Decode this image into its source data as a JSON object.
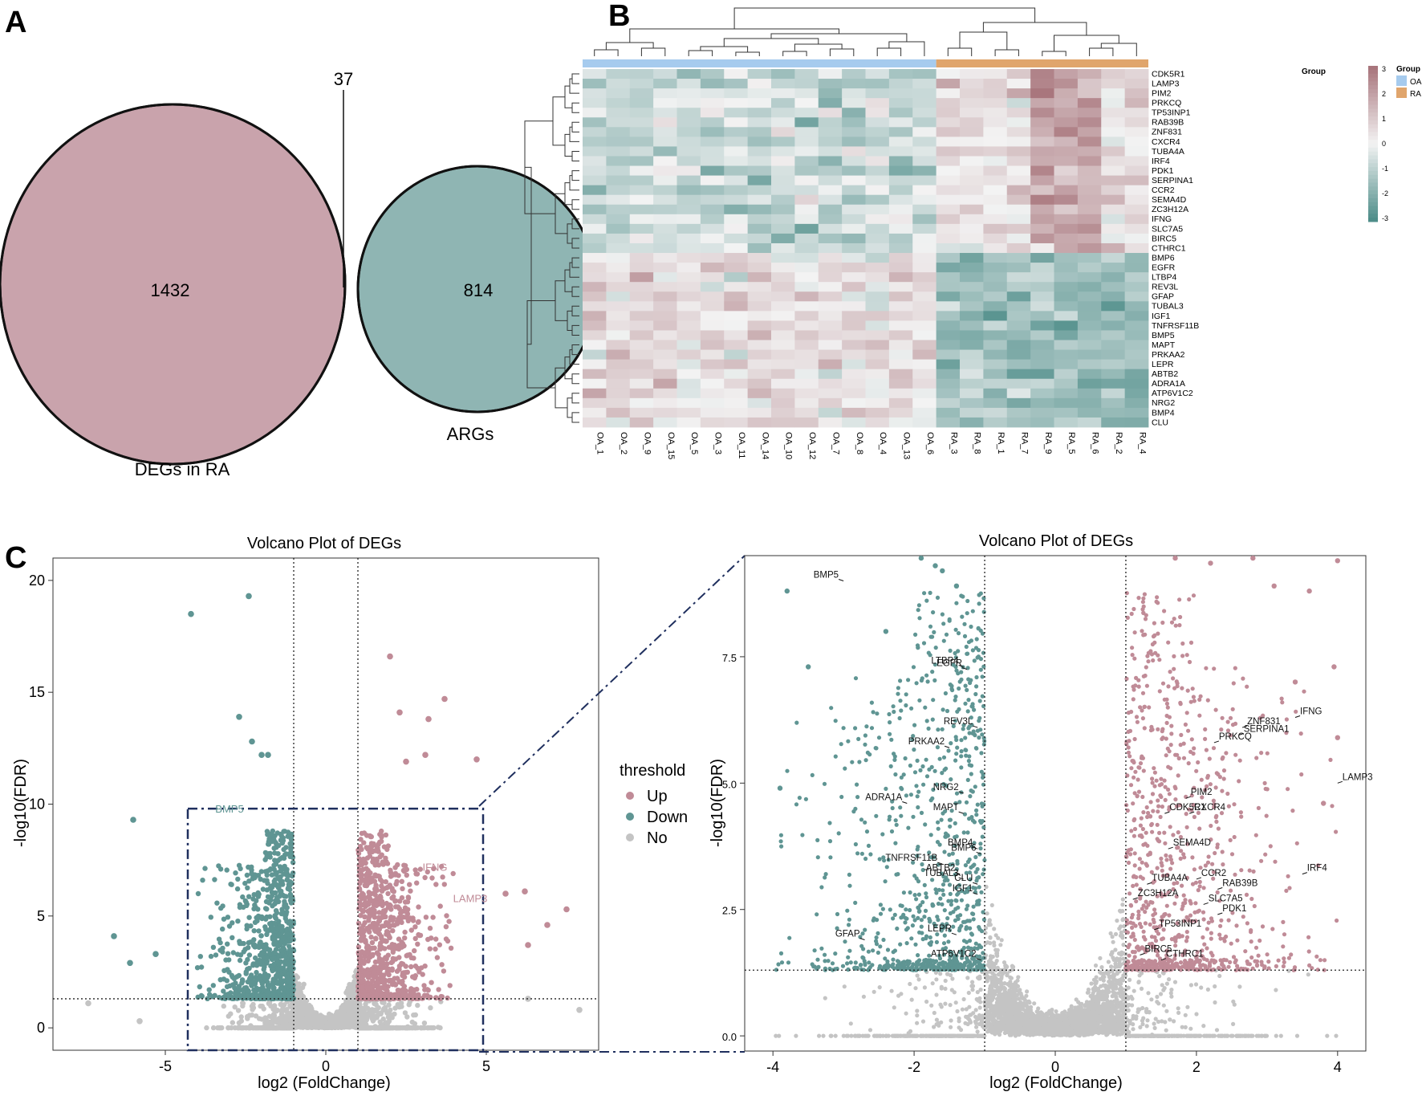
{
  "panels": {
    "a": "A",
    "b": "B",
    "c": "C"
  },
  "venn": {
    "left_label": "DEGs in RA",
    "right_label": "ARGs",
    "left_only": "1432",
    "right_only": "814",
    "overlap": "37",
    "colors": {
      "left": "#c9a3ac",
      "right": "#8fb5b3",
      "overlap": "#7e9aa0"
    }
  },
  "heatmap": {
    "columns": [
      "OA_1",
      "OA_2",
      "OA_9",
      "OA_15",
      "OA_5",
      "OA_3",
      "OA_11",
      "OA_14",
      "OA_10",
      "OA_12",
      "OA_7",
      "OA_8",
      "OA_4",
      "OA_13",
      "OA_6",
      "RA_3",
      "RA_8",
      "RA_1",
      "RA_7",
      "RA_9",
      "RA_5",
      "RA_6",
      "RA_2",
      "RA_4"
    ],
    "rows": [
      "CDK5R1",
      "LAMP3",
      "PIM2",
      "PRKCQ",
      "TP53INP1",
      "RAB39B",
      "ZNF831",
      "CXCR4",
      "TUBA4A",
      "IRF4",
      "PDK1",
      "SERPINA1",
      "CCR2",
      "SEMA4D",
      "ZC3H12A",
      "IFNG",
      "SLC7A5",
      "BIRC5",
      "CTHRC1",
      "BMP6",
      "EGFR",
      "LTBP4",
      "REV3L",
      "GFAP",
      "TUBAL3",
      "IGF1",
      "TNFRSF11B",
      "BMP5",
      "MAPT",
      "PRKAA2",
      "LEPR",
      "ABTB2",
      "ADRA1A",
      "ATP6V1C2",
      "NRG2",
      "BMP4",
      "CLU"
    ],
    "group_title": "Group",
    "groups": [
      {
        "name": "OA",
        "color": "#a6cbee"
      },
      {
        "name": "RA",
        "color": "#e0a56c"
      }
    ],
    "colorbar_ticks": [
      "3",
      "2",
      "1",
      "0",
      "-1",
      "-2",
      "-3"
    ],
    "colors": {
      "high": "#a8757c",
      "mid": "#f3f3f3",
      "low": "#4e8d89"
    }
  },
  "chart_data": [
    {
      "type": "scatter",
      "title": "Volcano Plot of DEGs",
      "xlabel": "log2 (FoldChange)",
      "ylabel": "-log10(FDR)",
      "xlim": [
        -8.5,
        8.5
      ],
      "ylim": [
        -1,
        21
      ],
      "x_ticks": [
        "-5",
        "0",
        "5"
      ],
      "y_ticks": [
        "0",
        "5",
        "10",
        "15",
        "20"
      ],
      "thresholds": {
        "x": [
          -1,
          1
        ],
        "y": 1.3
      },
      "zoom_box": {
        "x": [
          -4.3,
          4.9
        ],
        "y": [
          -1,
          9.8
        ]
      },
      "series": [
        {
          "name": "Up",
          "color": "#c08b97"
        },
        {
          "name": "Down",
          "color": "#5f9593"
        },
        {
          "name": "No",
          "color": "#c4c4c4"
        }
      ],
      "outliers": [
        {
          "x": -2.4,
          "y": 19.3,
          "g": "Down"
        },
        {
          "x": -4.2,
          "y": 18.5,
          "g": "Down"
        },
        {
          "x": -2.7,
          "y": 13.9,
          "g": "Down"
        },
        {
          "x": -2.3,
          "y": 12.8,
          "g": "Down"
        },
        {
          "x": -2.0,
          "y": 12.2,
          "g": "Down"
        },
        {
          "x": -1.8,
          "y": 12.2,
          "g": "Down"
        },
        {
          "x": -6.0,
          "y": 9.3,
          "g": "Down"
        },
        {
          "x": -6.6,
          "y": 4.1,
          "g": "Down"
        },
        {
          "x": -6.1,
          "y": 2.9,
          "g": "Down"
        },
        {
          "x": -5.3,
          "y": 3.3,
          "g": "Down"
        },
        {
          "x": 2.0,
          "y": 16.6,
          "g": "Up"
        },
        {
          "x": 3.7,
          "y": 14.7,
          "g": "Up"
        },
        {
          "x": 2.3,
          "y": 14.1,
          "g": "Up"
        },
        {
          "x": 3.2,
          "y": 13.8,
          "g": "Up"
        },
        {
          "x": 4.7,
          "y": 12.0,
          "g": "Up"
        },
        {
          "x": 3.1,
          "y": 12.2,
          "g": "Up"
        },
        {
          "x": 2.5,
          "y": 11.9,
          "g": "Up"
        },
        {
          "x": 7.5,
          "y": 5.3,
          "g": "Up"
        },
        {
          "x": 6.2,
          "y": 6.1,
          "g": "Up"
        },
        {
          "x": 5.6,
          "y": 6.0,
          "g": "Up"
        },
        {
          "x": 6.9,
          "y": 4.6,
          "g": "Up"
        },
        {
          "x": 6.3,
          "y": 3.7,
          "g": "Up"
        },
        {
          "x": -7.4,
          "y": 1.1,
          "g": "No"
        },
        {
          "x": 7.9,
          "y": 0.8,
          "g": "No"
        },
        {
          "x": -5.8,
          "y": 0.3,
          "g": "No"
        },
        {
          "x": 6.3,
          "y": 1.3,
          "g": "No"
        }
      ],
      "annotations": [
        {
          "label": "BMP5",
          "x": -3.0,
          "y": 9.4,
          "g": "Down"
        },
        {
          "label": "IFNG",
          "x": 3.4,
          "y": 6.8,
          "g": "Up"
        },
        {
          "label": "LAMP3",
          "x": 4.5,
          "y": 5.4,
          "g": "Up"
        }
      ]
    },
    {
      "type": "scatter",
      "title": "Volcano Plot of DEGs",
      "xlabel": "log2 (FoldChange)",
      "ylabel": "-log10(FDR)",
      "xlim": [
        -4.4,
        4.4
      ],
      "ylim": [
        -0.3,
        9.5
      ],
      "x_ticks": [
        "-4",
        "-2",
        "0",
        "2",
        "4"
      ],
      "y_ticks": [
        "0.0",
        "2.5",
        "5.0",
        "7.5"
      ],
      "thresholds": {
        "x": [
          -1,
          1
        ],
        "y": 1.3
      },
      "outliers": [
        {
          "x": -1.9,
          "y": 9.45,
          "g": "Down"
        },
        {
          "x": -1.7,
          "y": 9.3,
          "g": "Down"
        },
        {
          "x": -1.6,
          "y": 9.2,
          "g": "Down"
        },
        {
          "x": -1.4,
          "y": 8.9,
          "g": "Down"
        },
        {
          "x": -3.8,
          "y": 8.8,
          "g": "Down"
        },
        {
          "x": -2.4,
          "y": 8.0,
          "g": "Down"
        },
        {
          "x": -3.5,
          "y": 7.3,
          "g": "Down"
        },
        {
          "x": -3.9,
          "y": 4.9,
          "g": "Down"
        },
        {
          "x": 1.7,
          "y": 9.45,
          "g": "Up"
        },
        {
          "x": 2.2,
          "y": 9.35,
          "g": "Up"
        },
        {
          "x": 2.8,
          "y": 9.45,
          "g": "Up"
        },
        {
          "x": 4.0,
          "y": 9.4,
          "g": "Up"
        },
        {
          "x": 3.6,
          "y": 8.8,
          "g": "Up"
        },
        {
          "x": 3.1,
          "y": 8.9,
          "g": "Up"
        },
        {
          "x": 3.95,
          "y": 7.3,
          "g": "Up"
        },
        {
          "x": 3.4,
          "y": 7.0,
          "g": "Up"
        },
        {
          "x": 4.0,
          "y": 5.9,
          "g": "Up"
        },
        {
          "x": 3.8,
          "y": 4.6,
          "g": "Up"
        }
      ],
      "annotations": [
        {
          "label": "BMP5",
          "x": -3.0,
          "y": 9.0,
          "g": "Down"
        },
        {
          "label": "LTBP4",
          "x": -1.3,
          "y": 7.3,
          "g": "Down"
        },
        {
          "label": "EGFR",
          "x": -1.25,
          "y": 7.25,
          "g": "Down"
        },
        {
          "label": "REV3L",
          "x": -1.1,
          "y": 6.1,
          "g": "Down"
        },
        {
          "label": "PRKAA2",
          "x": -1.5,
          "y": 5.7,
          "g": "Down"
        },
        {
          "label": "NRG2",
          "x": -1.3,
          "y": 4.8,
          "g": "Down"
        },
        {
          "label": "MAPT",
          "x": -1.3,
          "y": 4.4,
          "g": "Down"
        },
        {
          "label": "ADRA1A",
          "x": -2.1,
          "y": 4.6,
          "g": "Down"
        },
        {
          "label": "BMP4",
          "x": -1.1,
          "y": 3.7,
          "g": "Down"
        },
        {
          "label": "BMP6",
          "x": -1.05,
          "y": 3.6,
          "g": "Down"
        },
        {
          "label": "TNFRSF11B",
          "x": -1.6,
          "y": 3.4,
          "g": "Down"
        },
        {
          "label": "ABTB2",
          "x": -1.35,
          "y": 3.2,
          "g": "Down"
        },
        {
          "label": "CLU",
          "x": -1.1,
          "y": 3.0,
          "g": "Down"
        },
        {
          "label": "IGF1",
          "x": -1.1,
          "y": 2.8,
          "g": "Down"
        },
        {
          "label": "TUBAL3",
          "x": -1.3,
          "y": 3.1,
          "g": "Down"
        },
        {
          "label": "LEPR",
          "x": -1.4,
          "y": 2.0,
          "g": "Down"
        },
        {
          "label": "GFAP",
          "x": -2.7,
          "y": 1.9,
          "g": "Down"
        },
        {
          "label": "ATP6V1C2",
          "x": -1.05,
          "y": 1.5,
          "g": "Down"
        },
        {
          "label": "IFNG",
          "x": 3.4,
          "y": 6.3,
          "g": "Up"
        },
        {
          "label": "ZNF831",
          "x": 2.65,
          "y": 6.1,
          "g": "Up"
        },
        {
          "label": "SERPINA1",
          "x": 2.6,
          "y": 5.95,
          "g": "Up"
        },
        {
          "label": "PRKCQ",
          "x": 2.25,
          "y": 5.8,
          "g": "Up"
        },
        {
          "label": "LAMP3",
          "x": 4.0,
          "y": 5.0,
          "g": "Up"
        },
        {
          "label": "PIM2",
          "x": 1.85,
          "y": 4.7,
          "g": "Up"
        },
        {
          "label": "CXCR4",
          "x": 1.9,
          "y": 4.4,
          "g": "Up"
        },
        {
          "label": "CDK5R1",
          "x": 1.55,
          "y": 4.4,
          "g": "Up"
        },
        {
          "label": "SEMA4D",
          "x": 1.6,
          "y": 3.7,
          "g": "Up"
        },
        {
          "label": "TUBA4A",
          "x": 1.3,
          "y": 3.0,
          "g": "Up"
        },
        {
          "label": "IRF4",
          "x": 3.5,
          "y": 3.2,
          "g": "Up"
        },
        {
          "label": "CCR2",
          "x": 2.0,
          "y": 3.1,
          "g": "Up"
        },
        {
          "label": "ZC3H12A",
          "x": 1.1,
          "y": 2.7,
          "g": "Up"
        },
        {
          "label": "RAB39B",
          "x": 2.3,
          "y": 2.9,
          "g": "Up"
        },
        {
          "label": "PDK1",
          "x": 2.3,
          "y": 2.4,
          "g": "Up"
        },
        {
          "label": "SLC7A5",
          "x": 2.1,
          "y": 2.6,
          "g": "Up"
        },
        {
          "label": "TP53INP1",
          "x": 1.4,
          "y": 2.1,
          "g": "Up"
        },
        {
          "label": "BIRC5",
          "x": 1.2,
          "y": 1.6,
          "g": "Up"
        },
        {
          "label": "CTHRC1",
          "x": 1.5,
          "y": 1.5,
          "g": "Up"
        }
      ]
    }
  ],
  "legend": {
    "title": "threshold",
    "items": [
      {
        "label": "Up",
        "color": "#c08b97"
      },
      {
        "label": "Down",
        "color": "#5f9593"
      },
      {
        "label": "No",
        "color": "#c4c4c4"
      }
    ]
  }
}
